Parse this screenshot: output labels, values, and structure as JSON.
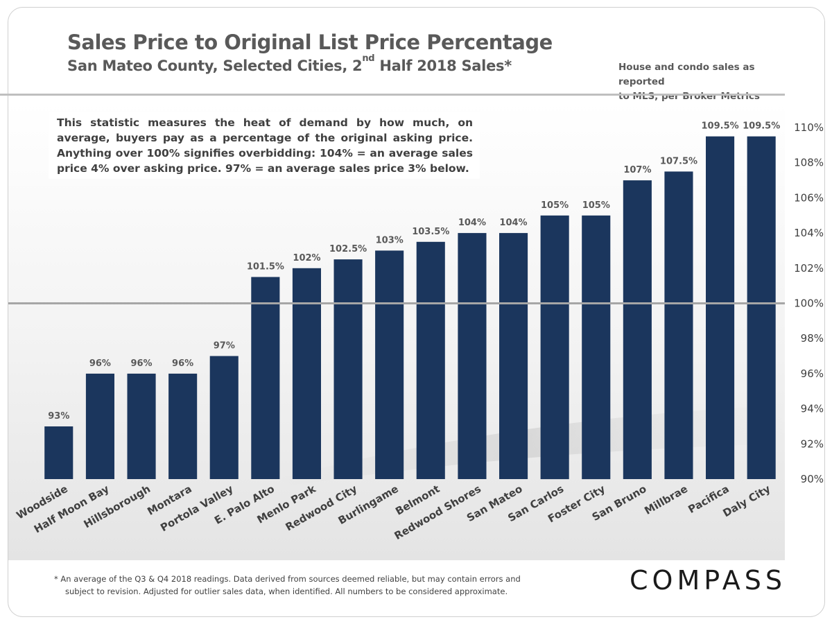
{
  "header": {
    "title": "Sales Price to Original List Price Percentage",
    "subtitle_pre": "San Mateo County, Selected Cities, 2",
    "subtitle_sup": "nd",
    "subtitle_post": " Half 2018 Sales*",
    "source_line1": "House and condo sales as reported",
    "source_line2": "to MLS, per Broker Metrics"
  },
  "note": "This statistic measures the heat of demand by how much, on average, buyers pay as a percentage of the original asking price. Anything over 100% signifies overbidding:  104% = an average sales price 4% over asking price. 97% = an average sales price 3% below.",
  "footnote": {
    "line1": "* An average of the Q3 & Q4 2018 readings. Data derived from sources deemed reliable, but may contain errors and",
    "line2": "subject to revision. Adjusted for outlier sales data, when identified. All numbers to be considered approximate."
  },
  "logo": "COMPASS",
  "colors": {
    "bar": "#1b365d",
    "reference_line": "#a6a6a6",
    "text": "#595959"
  },
  "chart_data": {
    "type": "bar",
    "title": "Sales Price to Original List Price Percentage",
    "subtitle": "San Mateo County, Selected Cities, 2nd Half 2018 Sales*",
    "categories": [
      "Woodside",
      "Half Moon Bay",
      "Hillsborough",
      "Montara",
      "Portola Valley",
      "E. Palo Alto",
      "Menlo Park",
      "Redwood City",
      "Burlingame",
      "Belmont",
      "Redwood Shores",
      "San Mateo",
      "San Carlos",
      "Foster City",
      "San Bruno",
      "Millbrae",
      "Pacifica",
      "Daly City"
    ],
    "values": [
      93,
      96,
      96,
      96,
      97,
      101.5,
      102,
      102.5,
      103,
      103.5,
      104,
      104,
      105,
      105,
      107,
      107.5,
      109.5,
      109.5
    ],
    "data_labels": [
      "93%",
      "96%",
      "96%",
      "96%",
      "97%",
      "101.5%",
      "102%",
      "102.5%",
      "103%",
      "103.5%",
      "104%",
      "104%",
      "105%",
      "105%",
      "107%",
      "107.5%",
      "109.5%",
      "109.5%"
    ],
    "y_ticks": [
      90,
      92,
      94,
      96,
      98,
      100,
      102,
      104,
      106,
      108,
      110
    ],
    "y_tick_labels": [
      "90%",
      "92%",
      "94%",
      "96%",
      "98%",
      "100%",
      "102%",
      "104%",
      "106%",
      "108%",
      "110%"
    ],
    "ylim": [
      90,
      110
    ],
    "y_axis_side": "right",
    "reference_line": 100,
    "grid": false,
    "legend": "none"
  }
}
